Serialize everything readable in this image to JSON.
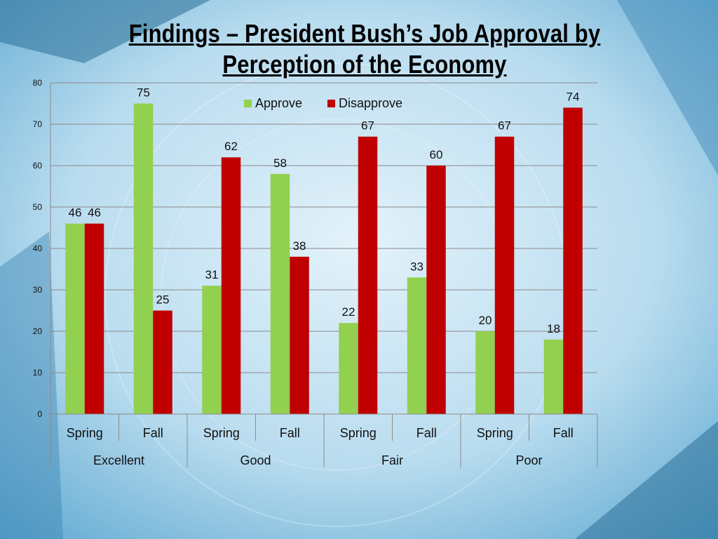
{
  "title": "Findings – President Bush’s Job Approval by Perception of the Economy",
  "colors": {
    "approve": "#92d050",
    "disapprove": "#c00000"
  },
  "chart_data": {
    "type": "bar",
    "groups": [
      "Excellent",
      "Good",
      "Fair",
      "Poor"
    ],
    "categories": [
      "Spring",
      "Fall",
      "Spring",
      "Fall",
      "Spring",
      "Fall",
      "Spring",
      "Fall"
    ],
    "series": [
      {
        "name": "Approve",
        "values": [
          46,
          75,
          31,
          58,
          22,
          33,
          20,
          18
        ]
      },
      {
        "name": "Disapprove",
        "values": [
          46,
          25,
          62,
          38,
          67,
          60,
          67,
          74
        ]
      }
    ],
    "ylim": [
      0,
      80
    ],
    "yticks": [
      0,
      10,
      20,
      30,
      40,
      50,
      60,
      70,
      80
    ],
    "grid": true,
    "legend_position": "top"
  }
}
